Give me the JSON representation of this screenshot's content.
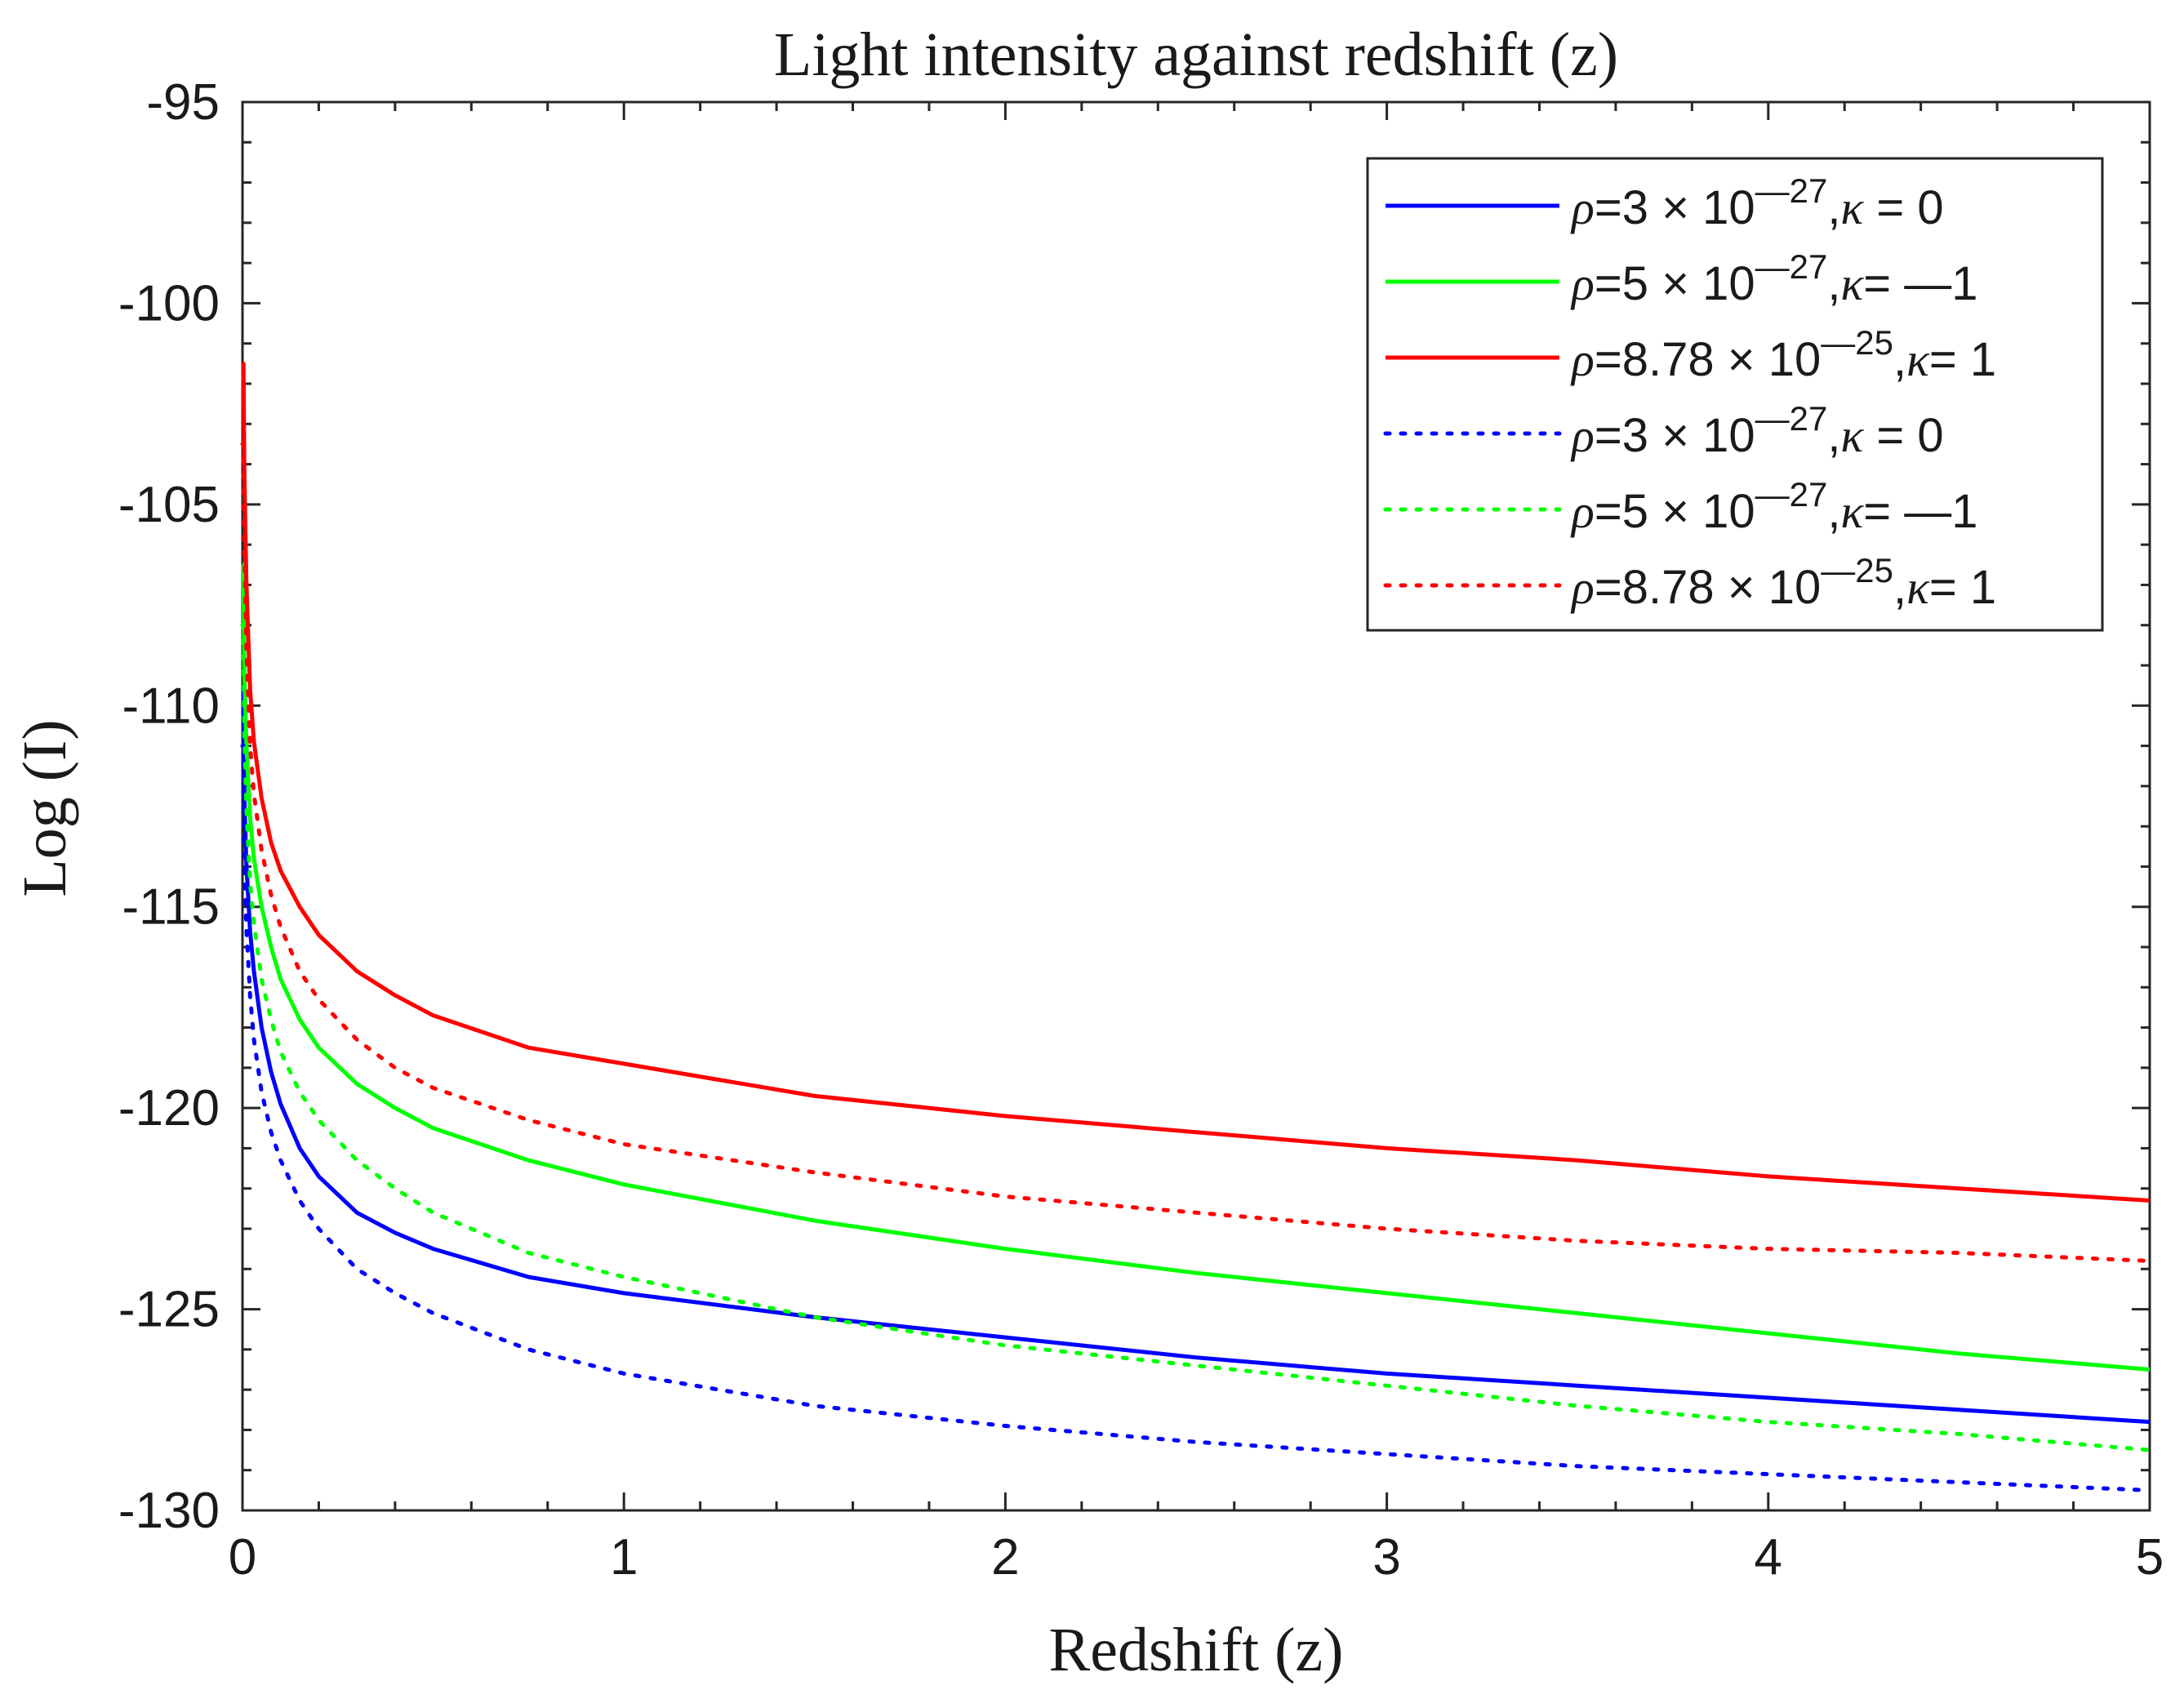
{
  "chart_data": {
    "type": "line",
    "title": "Light intensity against redshift (z)",
    "xlabel": "Redshift (z)",
    "ylabel": "Log (I)",
    "xlim": [
      0,
      5
    ],
    "ylim": [
      -130,
      -95
    ],
    "xticks": [
      0,
      1,
      2,
      3,
      4,
      5
    ],
    "xtick_labels": [
      "0",
      "1",
      "2",
      "3",
      "4",
      "5"
    ],
    "yticks": [
      -95,
      -100,
      -105,
      -110,
      -115,
      -120,
      -125,
      -130
    ],
    "ytick_labels": [
      "-95",
      "-100",
      "-105",
      "-110",
      "-115",
      "-120",
      "-125",
      "-130"
    ],
    "legend_position": "top-right",
    "x": [
      0.0025,
      0.005,
      0.01,
      0.02,
      0.03,
      0.05,
      0.075,
      0.1,
      0.15,
      0.2,
      0.3,
      0.4,
      0.5,
      0.75,
      1.0,
      1.5,
      2.0,
      2.5,
      3.0,
      3.5,
      4.0,
      4.5,
      5.0
    ],
    "series": [
      {
        "name": "solid-blue",
        "legend_parts": {
          "symbol": "ρ",
          "mantissa": "=3 × 10",
          "exponent": "—27",
          "suffix_symbol": "κ",
          "suffix": " = 0"
        },
        "color": "#0000ff",
        "style": "solid",
        "values": [
          -109.5,
          -112.3,
          -113.9,
          -115.6,
          -116.6,
          -118.0,
          -119.1,
          -119.9,
          -121.0,
          -121.7,
          -122.6,
          -123.1,
          -123.5,
          -124.2,
          -124.6,
          -125.2,
          -125.7,
          -126.2,
          -126.6,
          -126.9,
          -127.2,
          -127.5,
          -127.8
        ]
      },
      {
        "name": "solid-green",
        "legend_parts": {
          "symbol": "ρ",
          "mantissa": "=5 × 10",
          "exponent": "—27",
          "suffix_symbol": "κ",
          "suffix": "= —1"
        },
        "color": "#00ff00",
        "style": "solid",
        "values": [
          -106.5,
          -109.2,
          -110.9,
          -112.8,
          -113.8,
          -115.0,
          -116.0,
          -116.8,
          -117.8,
          -118.5,
          -119.4,
          -120.0,
          -120.5,
          -121.3,
          -121.9,
          -122.8,
          -123.5,
          -124.1,
          -124.6,
          -125.1,
          -125.6,
          -126.1,
          -126.5
        ]
      },
      {
        "name": "solid-red",
        "legend_parts": {
          "symbol": "ρ",
          "mantissa": "=8.78 × 10",
          "exponent": "—25",
          "suffix_symbol": "κ",
          "suffix": "= 1"
        },
        "color": "#ff0000",
        "style": "solid",
        "values": [
          -101.5,
          -104.2,
          -106.9,
          -109.6,
          -110.9,
          -112.3,
          -113.4,
          -114.1,
          -115.0,
          -115.7,
          -116.6,
          -117.2,
          -117.7,
          -118.5,
          -118.9,
          -119.7,
          -120.2,
          -120.6,
          -121.0,
          -121.3,
          -121.7,
          -122.0,
          -122.3
        ]
      },
      {
        "name": "dotted-blue",
        "legend_parts": {
          "symbol": "ρ",
          "mantissa": "=3 × 10",
          "exponent": "—27",
          "suffix_symbol": "κ",
          "suffix": " = 0"
        },
        "color": "#0000ff",
        "style": "dotted",
        "values": [
          -111.0,
          -113.8,
          -115.5,
          -117.2,
          -118.3,
          -119.6,
          -120.6,
          -121.3,
          -122.3,
          -123.0,
          -124.0,
          -124.6,
          -125.1,
          -126.0,
          -126.6,
          -127.4,
          -127.9,
          -128.3,
          -128.6,
          -128.9,
          -129.1,
          -129.3,
          -129.5
        ]
      },
      {
        "name": "dotted-green",
        "legend_parts": {
          "symbol": "ρ",
          "mantissa": "=5 × 10",
          "exponent": "—27",
          "suffix_symbol": "κ",
          "suffix": "= —1"
        },
        "color": "#00ff00",
        "style": "dotted",
        "values": [
          -108.0,
          -110.7,
          -112.5,
          -114.4,
          -115.4,
          -116.8,
          -117.8,
          -118.6,
          -119.6,
          -120.3,
          -121.3,
          -122.0,
          -122.6,
          -123.6,
          -124.2,
          -125.2,
          -125.9,
          -126.4,
          -126.9,
          -127.4,
          -127.8,
          -128.1,
          -128.5
        ]
      },
      {
        "name": "dotted-red",
        "legend_parts": {
          "symbol": "ρ",
          "mantissa": "=8.78 × 10",
          "exponent": "—25",
          "suffix_symbol": "κ",
          "suffix": "= 1"
        },
        "color": "#ff0000",
        "style": "dotted",
        "values": [
          -103.5,
          -106.2,
          -108.5,
          -111.0,
          -112.2,
          -113.6,
          -114.7,
          -115.5,
          -116.6,
          -117.3,
          -118.3,
          -119.0,
          -119.5,
          -120.3,
          -120.9,
          -121.6,
          -122.2,
          -122.6,
          -123.0,
          -123.3,
          -123.5,
          -123.6,
          -123.8
        ]
      }
    ]
  }
}
